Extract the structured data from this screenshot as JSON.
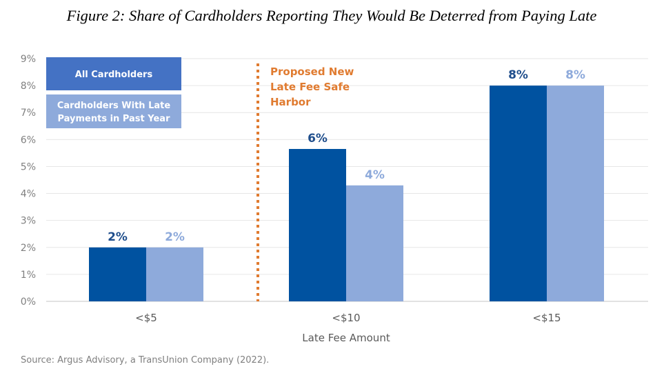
{
  "chart_data": {
    "type": "bar",
    "title": "Figure 2: Share of Cardholders Reporting They Would Be Deterred from Paying Late",
    "xlabel": "Late Fee Amount",
    "ylabel": "",
    "ylim": [
      0,
      9
    ],
    "yticks": [
      "0%",
      "1%",
      "2%",
      "3%",
      "4%",
      "5%",
      "6%",
      "7%",
      "8%",
      "9%"
    ],
    "categories": [
      "<$5",
      "<$10",
      "<$15"
    ],
    "series": [
      {
        "name": "All Cardholders",
        "values": [
          2.0,
          5.65,
          8.0
        ],
        "labels": [
          "2%",
          "6%",
          "8%"
        ],
        "color": "#0052a0",
        "legend_color": "#4472c4"
      },
      {
        "name": "Cardholders With Late Payments in Past Year",
        "values": [
          2.0,
          4.3,
          8.0
        ],
        "labels": [
          "2%",
          "4%",
          "8%"
        ],
        "color": "#8eaadb",
        "legend_color": "#8eaadb"
      }
    ],
    "legend_lines": [
      [
        "All Cardholders"
      ],
      [
        "Cardholders With Late",
        "Payments in Past Year"
      ]
    ],
    "legend_placement": "top-left",
    "grid": true,
    "annotation": {
      "lines": [
        "Proposed New",
        "Late Fee Safe",
        "Harbor"
      ],
      "between": [
        "<$5",
        "<$10"
      ],
      "color": "#e07b30"
    },
    "source": "Source: Argus Advisory, a TransUnion Company (2022)."
  }
}
